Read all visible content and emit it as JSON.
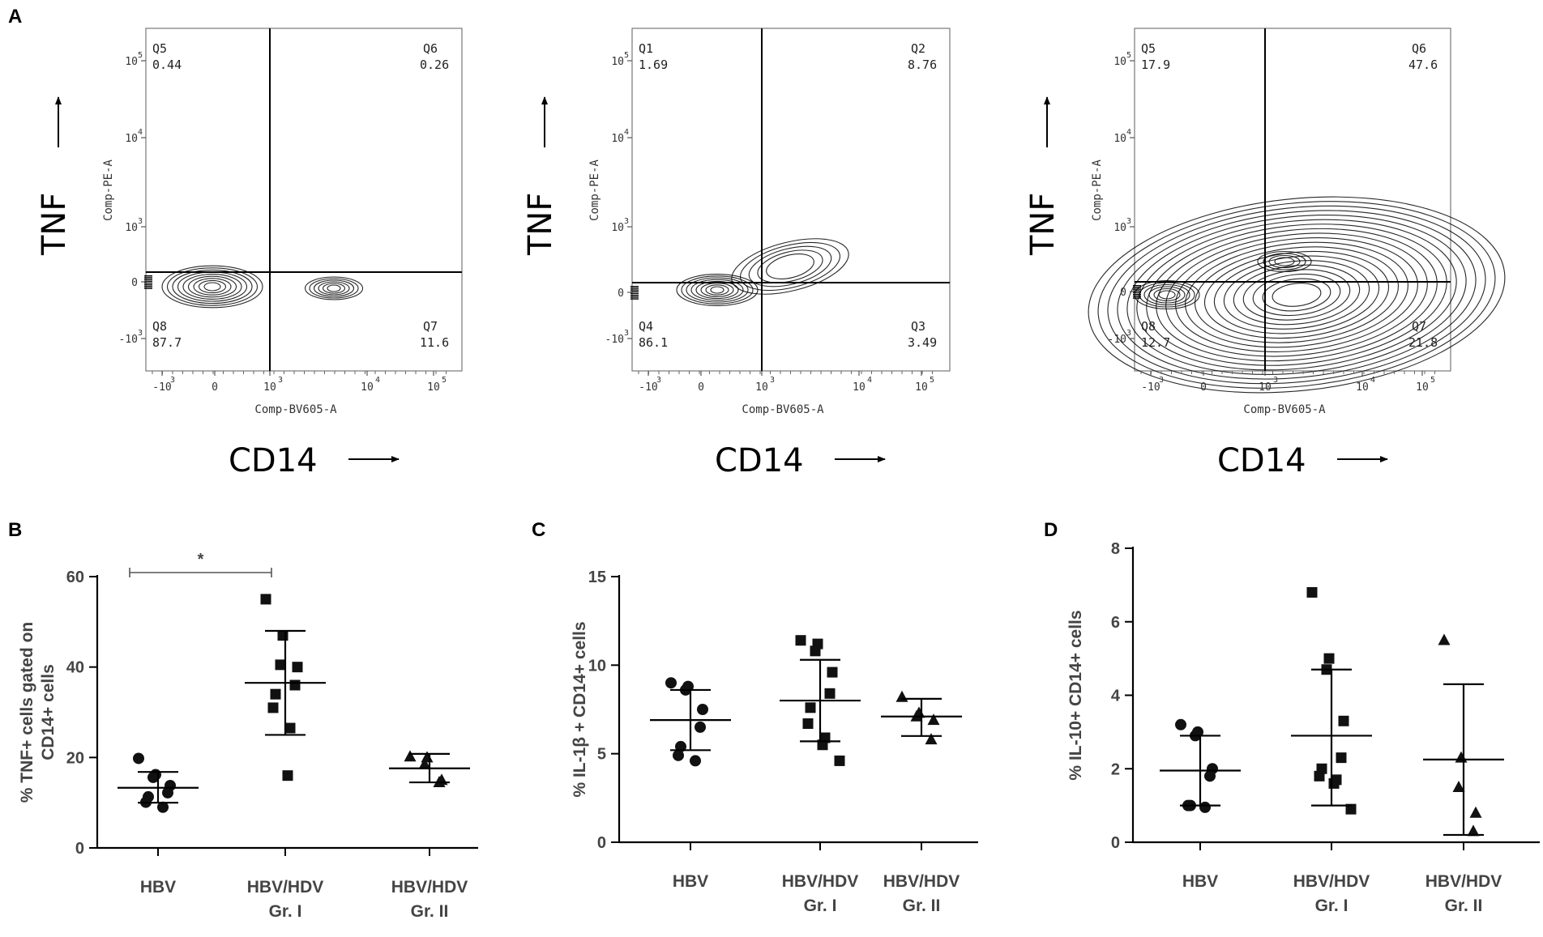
{
  "panel_letters": [
    "A",
    "B",
    "C",
    "D"
  ],
  "chart_data": [
    {
      "type": "scatter",
      "panel": "A",
      "subtype": "flow-cytometry contour",
      "x_axis_title": "CD14",
      "y_axis_title": "TNF",
      "x_param": "Comp-BV605-A",
      "y_param": "Comp-PE-A",
      "x_ticks": [
        "-10",
        "0",
        "10",
        "10",
        "10"
      ],
      "x_tick_exp": [
        "3",
        "",
        "3",
        "4",
        "5"
      ],
      "y_ticks": [
        "10",
        "10",
        "10",
        "0",
        "-10"
      ],
      "y_tick_exp": [
        "5",
        "4",
        "3",
        "",
        "3"
      ],
      "quadrants": [
        {
          "ul_name": "Q5",
          "ul_value": "0.44",
          "ur_name": "Q6",
          "ur_value": "0.26",
          "ll_name": "Q8",
          "ll_value": "87.7",
          "lr_name": "Q7",
          "lr_value": "11.6"
        },
        {
          "ul_name": "Q1",
          "ul_value": "1.69",
          "ur_name": "Q2",
          "ur_value": "8.76",
          "ll_name": "Q4",
          "ll_value": "86.1",
          "lr_name": "Q3",
          "lr_value": "3.49"
        },
        {
          "ul_name": "Q5",
          "ul_value": "17.9",
          "ur_name": "Q6",
          "ur_value": "47.6",
          "ll_name": "Q8",
          "ll_value": "12.7",
          "lr_name": "Q7",
          "lr_value": "21.8"
        }
      ]
    },
    {
      "type": "scatter",
      "panel": "B",
      "ylabel_lines": [
        "% TNF+ cells gated on",
        "CD14+ cells"
      ],
      "ylim": [
        0,
        60
      ],
      "yticks": [
        "0",
        "20",
        "40",
        "60"
      ],
      "groups": [
        {
          "label_lines": [
            "HBV"
          ],
          "marker": "circle",
          "values": [
            19.8,
            16.2,
            15.6,
            13.8,
            12.2,
            11.3,
            10.1,
            9.0
          ],
          "mean": 13.3,
          "sd_low": 10.0,
          "sd_high": 16.8
        },
        {
          "label_lines": [
            "HBV/HDV",
            "Gr. I"
          ],
          "marker": "square",
          "values": [
            55.0,
            47.0,
            40.5,
            40.0,
            36.0,
            34.0,
            31.0,
            26.5,
            16.0
          ],
          "mean": 36.5,
          "sd_low": 25.0,
          "sd_high": 48.0
        },
        {
          "label_lines": [
            "HBV/HDV",
            "Gr. II"
          ],
          "marker": "triangle",
          "values": [
            20.2,
            20.0,
            18.5,
            15.0,
            14.5
          ],
          "mean": 17.6,
          "sd_low": 14.5,
          "sd_high": 20.8
        }
      ],
      "significance": [
        {
          "from": 0,
          "to": 1,
          "label": "*"
        }
      ]
    },
    {
      "type": "scatter",
      "panel": "C",
      "ylabel": "% IL-1β + CD14+ cells",
      "ylim": [
        0,
        15
      ],
      "yticks": [
        "0",
        "5",
        "10",
        "15"
      ],
      "groups": [
        {
          "label_lines": [
            "HBV"
          ],
          "marker": "circle",
          "values": [
            9.0,
            8.8,
            8.6,
            7.5,
            6.5,
            5.4,
            4.9,
            4.6
          ],
          "mean": 6.9,
          "sd_low": 5.2,
          "sd_high": 8.6
        },
        {
          "label_lines": [
            "HBV/HDV",
            "Gr. I"
          ],
          "marker": "square",
          "values": [
            11.4,
            11.2,
            10.8,
            9.6,
            8.4,
            7.6,
            6.7,
            5.9,
            5.5,
            4.6
          ],
          "mean": 8.0,
          "sd_low": 5.7,
          "sd_high": 10.3
        },
        {
          "label_lines": [
            "HBV/HDV",
            "Gr. II"
          ],
          "marker": "triangle",
          "values": [
            8.2,
            7.3,
            7.1,
            6.9,
            5.8
          ],
          "mean": 7.1,
          "sd_low": 6.0,
          "sd_high": 8.1
        }
      ]
    },
    {
      "type": "scatter",
      "panel": "D",
      "ylabel": "% IL-10+ CD14+ cells",
      "ylim": [
        0,
        8
      ],
      "yticks": [
        "0",
        "2",
        "4",
        "6",
        "8"
      ],
      "groups": [
        {
          "label_lines": [
            "HBV"
          ],
          "marker": "circle",
          "values": [
            3.2,
            3.0,
            2.9,
            2.0,
            1.8,
            1.0,
            1.0,
            0.95
          ],
          "mean": 1.95,
          "sd_low": 1.0,
          "sd_high": 2.9
        },
        {
          "label_lines": [
            "HBV/HDV",
            "Gr. I"
          ],
          "marker": "square",
          "values": [
            6.8,
            5.0,
            4.7,
            3.3,
            2.3,
            2.0,
            1.8,
            1.7,
            1.6,
            0.9
          ],
          "mean": 2.9,
          "sd_low": 1.0,
          "sd_high": 4.7
        },
        {
          "label_lines": [
            "HBV/HDV",
            "Gr. II"
          ],
          "marker": "triangle",
          "values": [
            5.5,
            2.3,
            1.5,
            0.8,
            0.3
          ],
          "mean": 2.25,
          "sd_low": 0.2,
          "sd_high": 4.3
        }
      ]
    }
  ]
}
